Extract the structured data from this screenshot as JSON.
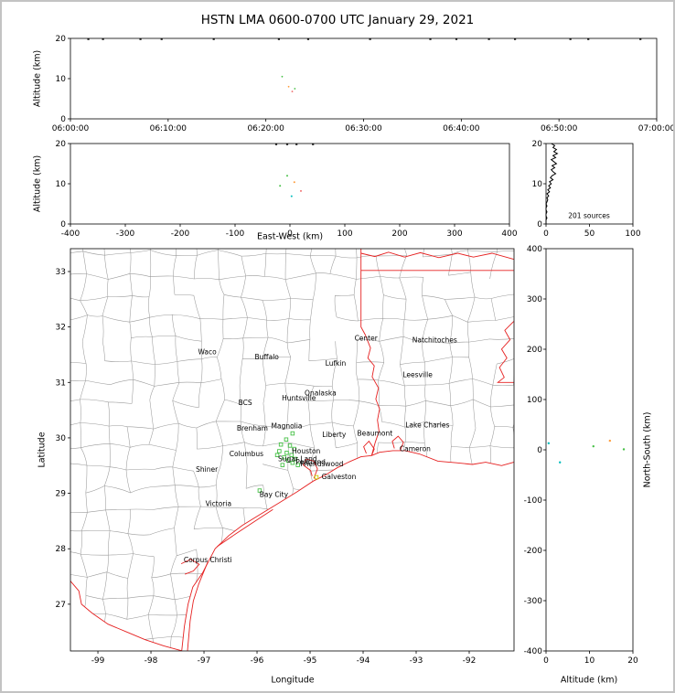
{
  "title": "HSTN LMA 0600-0700 UTC January 29, 2021",
  "chart_data": {
    "type": "scatter",
    "panels": {
      "time_height": {
        "ylabel": "Altitude (km)",
        "ylim": [
          0,
          20
        ],
        "yticks": [
          0,
          10,
          20
        ],
        "ytick_labels": [
          "0",
          "10",
          "20"
        ],
        "xlim_seconds": [
          0,
          3600
        ],
        "xtick_seconds": [
          0,
          600,
          1200,
          1800,
          2400,
          3000,
          3600
        ],
        "xtick_labels": [
          "06:00:00",
          "06:10:00",
          "06:20:00",
          "06:30:00",
          "06:40:00",
          "06:50:00",
          "07:00:00"
        ],
        "points": [
          {
            "t": 1300,
            "alt": 10.5,
            "color": "#46c046"
          },
          {
            "t": 1340,
            "alt": 8.0,
            "color": "#ff9d3c"
          },
          {
            "t": 1362,
            "alt": 6.8,
            "color": "#f07070"
          },
          {
            "t": 1378,
            "alt": 7.5,
            "color": "#46c046"
          }
        ],
        "clipped_top_seconds": [
          110,
          200,
          430,
          560,
          880,
          1280,
          1460,
          1840,
          2210,
          2370,
          2570,
          2730,
          3070,
          3180,
          3500
        ]
      },
      "ew_height": {
        "xlabel": "East-West (km)",
        "ylabel": "Altitude (km)",
        "xlim": [
          -400,
          400
        ],
        "ylim": [
          0,
          20
        ],
        "xticks": [
          -400,
          -300,
          -200,
          -100,
          0,
          100,
          200,
          300,
          400
        ],
        "xtick_labels": [
          "-400",
          "-300",
          "-200",
          "-100",
          "0",
          "100",
          "200",
          "300",
          "400"
        ],
        "yticks": [
          0,
          10,
          20
        ],
        "ytick_labels": [
          "0",
          "10",
          "20"
        ],
        "points": [
          {
            "x": -18,
            "alt": 9.5,
            "color": "#46c046"
          },
          {
            "x": -5,
            "alt": 12.0,
            "color": "#46c046"
          },
          {
            "x": 3,
            "alt": 6.9,
            "color": "#00bdbd"
          },
          {
            "x": 8,
            "alt": 10.4,
            "color": "#ff9d3c"
          },
          {
            "x": 20,
            "alt": 8.2,
            "color": "#f07070"
          }
        ],
        "clipped_top_km": [
          -25,
          -5,
          12,
          42
        ]
      },
      "altitude_histogram": {
        "annotation": "201 sources",
        "xlim": [
          0,
          100
        ],
        "ylim": [
          0,
          20
        ],
        "xticks": [
          0,
          50,
          100
        ],
        "xtick_labels": [
          "0",
          "50",
          "100"
        ],
        "yticks": [
          0,
          10,
          20
        ],
        "ytick_labels": [
          "0",
          "10",
          "20"
        ],
        "altitudes_km": [
          20,
          19.5,
          19,
          18.5,
          18,
          17.5,
          17,
          16.5,
          16,
          15.5,
          15,
          14.5,
          14,
          13.5,
          13,
          12.5,
          12,
          11.5,
          11,
          10.5,
          10,
          9.5,
          9,
          8.5,
          8,
          7.5,
          7,
          6.5,
          6,
          5.5,
          5,
          4.5,
          4,
          3.5,
          3,
          2.5,
          2,
          1.5,
          1,
          0.5,
          0
        ],
        "source_counts": [
          6,
          10,
          8,
          12,
          9,
          13,
          8,
          11,
          6,
          9,
          12,
          7,
          10,
          6,
          8,
          11,
          7,
          5,
          8,
          4,
          6,
          3,
          5,
          2,
          4,
          1,
          3,
          1,
          2,
          1,
          0,
          1,
          0,
          0,
          1,
          0,
          0,
          1,
          0,
          0,
          0
        ]
      },
      "map": {
        "xlabel": "Longitude",
        "ylabel": "Latitude",
        "lon_ticks": [
          -99,
          -98,
          -97,
          -96,
          -95,
          -94,
          -93,
          -92
        ],
        "lon_tick_labels": [
          "-99",
          "-98",
          "-97",
          "-96",
          "-95",
          "-94",
          "-93",
          "-92"
        ],
        "lat_ticks": [
          27,
          28,
          29,
          30,
          31,
          32,
          33
        ],
        "lat_tick_labels": [
          "27",
          "28",
          "29",
          "30",
          "31",
          "32",
          "33"
        ],
        "cities": [
          {
            "name": "Waco",
            "lon": -97.13,
            "lat": 31.55
          },
          {
            "name": "Buffalo",
            "lon": -96.06,
            "lat": 31.46
          },
          {
            "name": "Lufkin",
            "lon": -94.73,
            "lat": 31.34
          },
          {
            "name": "Center",
            "lon": -94.18,
            "lat": 31.8
          },
          {
            "name": "Natchitoches",
            "lon": -93.09,
            "lat": 31.76
          },
          {
            "name": "Leesville",
            "lon": -93.27,
            "lat": 31.14
          },
          {
            "name": "Onalaska",
            "lon": -95.12,
            "lat": 30.81
          },
          {
            "name": "Huntsville",
            "lon": -95.55,
            "lat": 30.72
          },
          {
            "name": "BCS",
            "lon": -96.37,
            "lat": 30.63
          },
          {
            "name": "Brenham",
            "lon": -96.4,
            "lat": 30.17
          },
          {
            "name": "Magnolia",
            "lon": -95.75,
            "lat": 30.21
          },
          {
            "name": "Liberty",
            "lon": -94.79,
            "lat": 30.06
          },
          {
            "name": "Beaumont",
            "lon": -94.13,
            "lat": 30.08
          },
          {
            "name": "Lake Charles",
            "lon": -93.22,
            "lat": 30.23
          },
          {
            "name": "Cameron",
            "lon": -93.33,
            "lat": 29.8
          },
          {
            "name": "Columbus",
            "lon": -96.54,
            "lat": 29.71
          },
          {
            "name": "Houston",
            "lon": -95.36,
            "lat": 29.76
          },
          {
            "name": "Sugar Land",
            "lon": -95.62,
            "lat": 29.62
          },
          {
            "name": "Pearland",
            "lon": -95.29,
            "lat": 29.56
          },
          {
            "name": "Friendswood",
            "lon": -95.2,
            "lat": 29.53
          },
          {
            "name": "Galveston",
            "lon": -94.8,
            "lat": 29.3
          },
          {
            "name": "Shiner",
            "lon": -97.17,
            "lat": 29.43
          },
          {
            "name": "Bay City",
            "lon": -95.97,
            "lat": 28.98
          },
          {
            "name": "Victoria",
            "lon": -96.99,
            "lat": 28.81
          },
          {
            "name": "Corpus Christi",
            "lon": -97.4,
            "lat": 27.8
          }
        ],
        "source_points": [
          {
            "lon": -95.45,
            "lat": 29.97,
            "color": "#46c046"
          },
          {
            "lon": -95.55,
            "lat": 29.88,
            "color": "#46c046"
          },
          {
            "lon": -95.38,
            "lat": 29.86,
            "color": "#46c046"
          },
          {
            "lon": -95.3,
            "lat": 29.8,
            "color": "#46c046"
          },
          {
            "lon": -95.58,
            "lat": 29.76,
            "color": "#46c046"
          },
          {
            "lon": -95.44,
            "lat": 29.73,
            "color": "#46c046"
          },
          {
            "lon": -95.35,
            "lat": 29.69,
            "color": "#46c046"
          },
          {
            "lon": -95.49,
            "lat": 29.65,
            "color": "#46c046"
          },
          {
            "lon": -95.28,
            "lat": 29.62,
            "color": "#46c046"
          },
          {
            "lon": -95.41,
            "lat": 29.59,
            "color": "#46c046"
          },
          {
            "lon": -95.33,
            "lat": 29.55,
            "color": "#46c046"
          },
          {
            "lon": -95.23,
            "lat": 29.51,
            "color": "#46c046"
          },
          {
            "lon": -95.52,
            "lat": 29.51,
            "color": "#46c046"
          },
          {
            "lon": -95.62,
            "lat": 29.69,
            "color": "#46c046"
          },
          {
            "lon": -95.33,
            "lat": 30.08,
            "color": "#46c046"
          },
          {
            "lon": -95.95,
            "lat": 29.05,
            "color": "#46c046"
          },
          {
            "lon": -94.88,
            "lat": 29.29,
            "color": "#c8c800"
          }
        ],
        "borders": {
          "tx_la": [
            [
              -94.04,
              33.42
            ],
            [
              -94.04,
              32.0
            ],
            [
              -93.96,
              31.86
            ],
            [
              -93.86,
              31.62
            ],
            [
              -93.91,
              31.44
            ],
            [
              -93.79,
              31.3
            ],
            [
              -93.83,
              31.1
            ],
            [
              -93.71,
              30.9
            ],
            [
              -93.76,
              30.7
            ],
            [
              -93.69,
              30.52
            ],
            [
              -93.73,
              30.32
            ],
            [
              -93.7,
              30.12
            ],
            [
              -93.77,
              29.92
            ],
            [
              -93.84,
              29.68
            ]
          ],
          "state_line_33": [
            [
              -94.04,
              33.02
            ],
            [
              -91.16,
              33.02
            ]
          ],
          "red_river": [
            [
              -94.04,
              33.33
            ],
            [
              -93.78,
              33.27
            ],
            [
              -93.52,
              33.35
            ],
            [
              -93.22,
              33.26
            ],
            [
              -92.92,
              33.34
            ],
            [
              -92.57,
              33.25
            ],
            [
              -92.22,
              33.33
            ],
            [
              -91.92,
              33.26
            ],
            [
              -91.57,
              33.33
            ],
            [
              -91.16,
              33.22
            ]
          ],
          "mississippi": [
            [
              -91.16,
              32.1
            ],
            [
              -91.33,
              31.94
            ],
            [
              -91.23,
              31.77
            ],
            [
              -91.39,
              31.6
            ],
            [
              -91.29,
              31.44
            ],
            [
              -91.43,
              31.27
            ],
            [
              -91.34,
              31.09
            ],
            [
              -91.46,
              31.0
            ],
            [
              -91.16,
              31.0
            ]
          ],
          "rio_grande": [
            [
              -99.52,
              27.42
            ],
            [
              -99.36,
              27.24
            ],
            [
              -99.31,
              27.0
            ],
            [
              -99.11,
              26.84
            ],
            [
              -98.81,
              26.64
            ],
            [
              -98.46,
              26.5
            ],
            [
              -98.11,
              26.36
            ],
            [
              -97.76,
              26.25
            ],
            [
              -97.42,
              26.16
            ]
          ],
          "tx_coast": [
            [
              -97.42,
              26.16
            ],
            [
              -97.37,
              26.6
            ],
            [
              -97.3,
              27.0
            ],
            [
              -97.21,
              27.31
            ],
            [
              -97.03,
              27.56
            ],
            [
              -96.79,
              28.0
            ],
            [
              -96.53,
              28.24
            ],
            [
              -96.28,
              28.42
            ],
            [
              -95.94,
              28.62
            ],
            [
              -95.58,
              28.83
            ],
            [
              -95.24,
              29.03
            ],
            [
              -94.94,
              29.22
            ],
            [
              -94.71,
              29.33
            ],
            [
              -94.49,
              29.46
            ],
            [
              -94.28,
              29.56
            ],
            [
              -94.04,
              29.66
            ],
            [
              -93.84,
              29.68
            ]
          ],
          "la_coast": [
            [
              -93.84,
              29.68
            ],
            [
              -93.69,
              29.74
            ],
            [
              -93.44,
              29.77
            ],
            [
              -93.21,
              29.77
            ],
            [
              -92.94,
              29.71
            ],
            [
              -92.59,
              29.58
            ],
            [
              -92.24,
              29.55
            ],
            [
              -91.94,
              29.52
            ],
            [
              -91.69,
              29.56
            ],
            [
              -91.39,
              29.5
            ],
            [
              -91.16,
              29.56
            ]
          ],
          "galveston_bay": [
            [
              -94.93,
              29.27
            ],
            [
              -94.86,
              29.44
            ],
            [
              -94.93,
              29.58
            ],
            [
              -95.07,
              29.62
            ],
            [
              -95.13,
              29.51
            ],
            [
              -94.99,
              29.41
            ],
            [
              -94.96,
              29.31
            ]
          ],
          "sabine_lake": [
            [
              -93.84,
              29.68
            ],
            [
              -93.79,
              29.8
            ],
            [
              -93.89,
              29.94
            ],
            [
              -93.99,
              29.84
            ],
            [
              -93.94,
              29.72
            ]
          ],
          "calcasieu_lake": [
            [
              -93.3,
              29.78
            ],
            [
              -93.24,
              29.92
            ],
            [
              -93.34,
              30.03
            ],
            [
              -93.45,
              29.94
            ],
            [
              -93.41,
              29.81
            ]
          ],
          "matagorda_barrier": [
            [
              -96.75,
              28.04
            ],
            [
              -96.4,
              28.27
            ],
            [
              -96.05,
              28.49
            ],
            [
              -95.7,
              28.71
            ]
          ],
          "padre_barrier": [
            [
              -97.31,
              26.16
            ],
            [
              -97.26,
              26.7
            ],
            [
              -97.2,
              27.06
            ],
            [
              -97.1,
              27.36
            ],
            [
              -96.93,
              27.76
            ]
          ],
          "corpus_bay": [
            [
              -97.36,
              27.54
            ],
            [
              -97.2,
              27.6
            ],
            [
              -97.09,
              27.72
            ],
            [
              -97.25,
              27.81
            ],
            [
              -97.43,
              27.73
            ]
          ]
        }
      },
      "ns_height": {
        "xlabel": "Altitude (km)",
        "ylabel": "North-South (km)",
        "xlim": [
          0,
          20
        ],
        "ylim": [
          -400,
          400
        ],
        "xticks": [
          0,
          10,
          20
        ],
        "xtick_labels": [
          "0",
          "10",
          "20"
        ],
        "yticks": [
          400,
          300,
          200,
          100,
          0,
          -100,
          -200,
          -300,
          -400
        ],
        "ytick_labels": [
          "400",
          "300",
          "200",
          "100",
          "0",
          "-100",
          "-200",
          "-300",
          "-400"
        ],
        "points": [
          {
            "alt": 0.6,
            "ns": 13,
            "color": "#00bdbd"
          },
          {
            "alt": 10.9,
            "ns": 7,
            "color": "#46c046"
          },
          {
            "alt": 14.7,
            "ns": 18,
            "color": "#ff9d3c"
          },
          {
            "alt": 3.2,
            "ns": -25,
            "color": "#00bdbd"
          },
          {
            "alt": 17.9,
            "ns": 1,
            "color": "#46c046"
          }
        ]
      }
    },
    "style_colors": {
      "state_border": "#e62020",
      "county_border": "#9a9a9a",
      "histogram_line": "#000000"
    }
  }
}
